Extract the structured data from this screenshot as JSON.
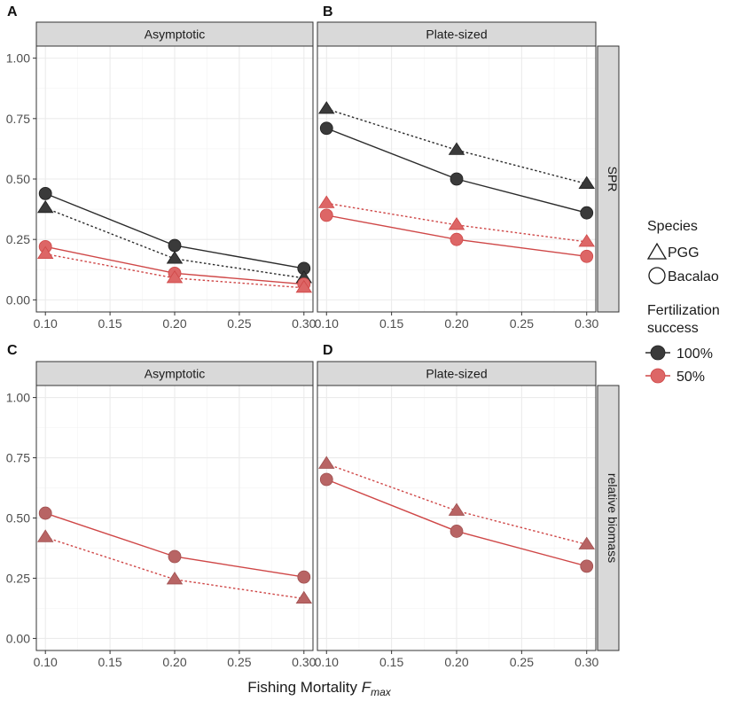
{
  "figure": {
    "xlabel_main": "Fishing Mortality ",
    "xlabel_italic": "F",
    "xlabel_sub": "max"
  },
  "legend": {
    "species_title": "Species",
    "species": [
      {
        "label": "PGG",
        "shape": "triangle"
      },
      {
        "label": "Bacalao",
        "shape": "circle"
      }
    ],
    "fert_title_line1": "Fertilization",
    "fert_title_line2": "success",
    "fertilization": [
      {
        "label": "100%",
        "color": "#2b2b2b",
        "fill": "#3a3a3a"
      },
      {
        "label": "50%",
        "color": "#d05050",
        "fill": "#dd6666"
      }
    ]
  },
  "colors": {
    "full": "#2b2b2b",
    "full_marker": "#3a3a3a",
    "half": "#cf4747",
    "half_marker": "#dd6666",
    "muted_marker": "#b86464",
    "strip": "#d9d9d9",
    "grid_major": "#ebebeb",
    "grid_minor": "#f4f4f4"
  },
  "chart_data": [
    {
      "panel": "A",
      "strip": "Asymptotic",
      "row_strip": "",
      "type": "line",
      "x": [
        0.1,
        0.2,
        0.3
      ],
      "xlim": [
        0.093,
        0.307
      ],
      "ylim": [
        -0.05,
        1.05
      ],
      "xticks": [
        "0.10",
        "0.15",
        "0.20",
        "0.25",
        "0.30"
      ],
      "yticks": [
        "0.00",
        "0.25",
        "0.50",
        "0.75",
        "1.00"
      ],
      "series": [
        {
          "species": "Bacalao",
          "fert": "100%",
          "values": [
            0.44,
            0.225,
            0.13
          ]
        },
        {
          "species": "PGG",
          "fert": "100%",
          "values": [
            0.38,
            0.17,
            0.09
          ]
        },
        {
          "species": "Bacalao",
          "fert": "50%",
          "values": [
            0.22,
            0.11,
            0.065
          ]
        },
        {
          "species": "PGG",
          "fert": "50%",
          "values": [
            0.19,
            0.09,
            0.05
          ]
        }
      ]
    },
    {
      "panel": "B",
      "strip": "Plate-sized",
      "row_strip": "SPR",
      "type": "line",
      "x": [
        0.1,
        0.2,
        0.3
      ],
      "xlim": [
        0.093,
        0.307
      ],
      "ylim": [
        -0.05,
        1.05
      ],
      "xticks": [
        "0.10",
        "0.15",
        "0.20",
        "0.25",
        "0.30"
      ],
      "yticks": [
        "0.00",
        "0.25",
        "0.50",
        "0.75",
        "1.00"
      ],
      "series": [
        {
          "species": "PGG",
          "fert": "100%",
          "values": [
            0.79,
            0.62,
            0.48
          ]
        },
        {
          "species": "Bacalao",
          "fert": "100%",
          "values": [
            0.71,
            0.5,
            0.36
          ]
        },
        {
          "species": "PGG",
          "fert": "50%",
          "values": [
            0.4,
            0.31,
            0.24
          ]
        },
        {
          "species": "Bacalao",
          "fert": "50%",
          "values": [
            0.35,
            0.25,
            0.18
          ]
        }
      ]
    },
    {
      "panel": "C",
      "strip": "Asymptotic",
      "row_strip": "",
      "type": "line",
      "x": [
        0.1,
        0.2,
        0.3
      ],
      "xlim": [
        0.093,
        0.307
      ],
      "ylim": [
        -0.05,
        1.05
      ],
      "xticks": [
        "0.10",
        "0.15",
        "0.20",
        "0.25",
        "0.30"
      ],
      "yticks": [
        "0.00",
        "0.25",
        "0.50",
        "0.75",
        "1.00"
      ],
      "series": [
        {
          "species": "Bacalao",
          "fert": "50%",
          "values": [
            0.52,
            0.34,
            0.255
          ]
        },
        {
          "species": "PGG",
          "fert": "50%",
          "values": [
            0.42,
            0.245,
            0.165
          ]
        }
      ]
    },
    {
      "panel": "D",
      "strip": "Plate-sized",
      "row_strip": "relative  biomass",
      "type": "line",
      "x": [
        0.1,
        0.2,
        0.3
      ],
      "xlim": [
        0.093,
        0.307
      ],
      "ylim": [
        -0.05,
        1.05
      ],
      "xticks": [
        "0.10",
        "0.15",
        "0.20",
        "0.25",
        "0.30"
      ],
      "yticks": [
        "0.00",
        "0.25",
        "0.50",
        "0.75",
        "1.00"
      ],
      "series": [
        {
          "species": "PGG",
          "fert": "50%",
          "values": [
            0.725,
            0.53,
            0.39
          ]
        },
        {
          "species": "Bacalao",
          "fert": "50%",
          "values": [
            0.66,
            0.445,
            0.3
          ]
        }
      ]
    }
  ]
}
